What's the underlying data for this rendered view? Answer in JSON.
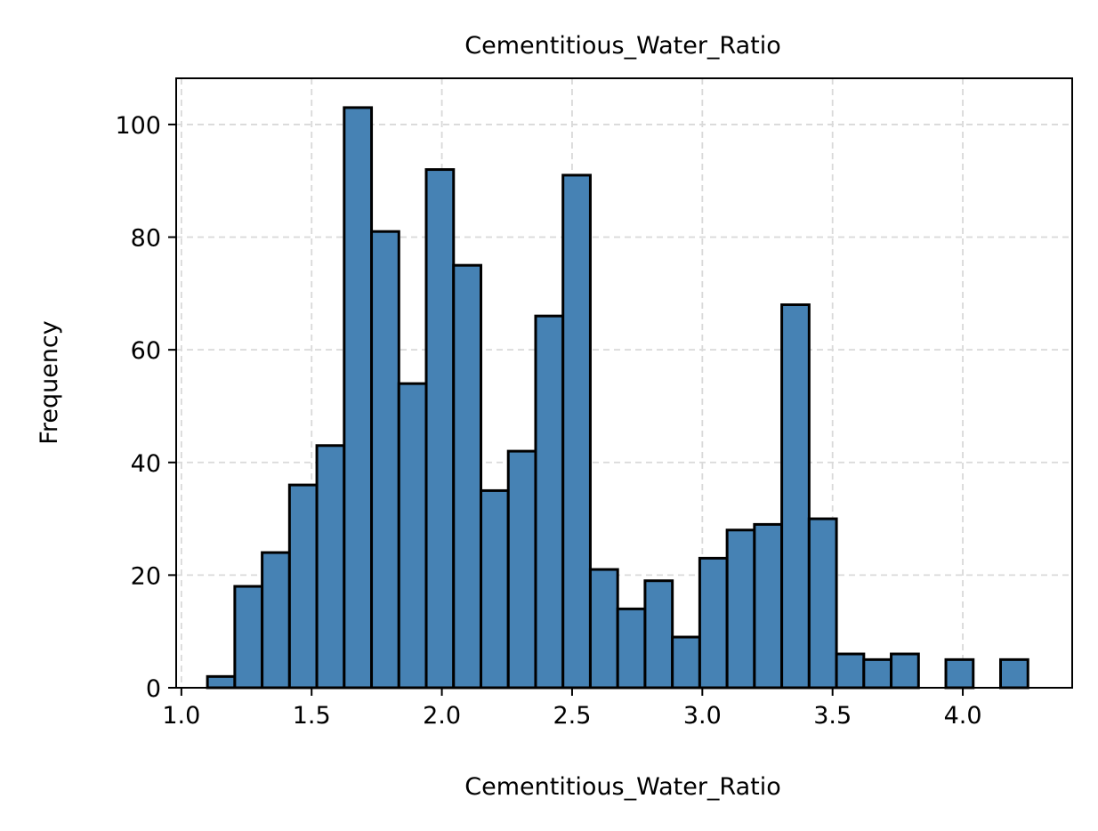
{
  "chart_data": {
    "type": "bar",
    "title": "Cementitious_Water_Ratio",
    "xlabel": "Cementitious_Water_Ratio",
    "ylabel": "Frequency",
    "xlim": [
      0.98,
      4.42
    ],
    "ylim": [
      0,
      108.2
    ],
    "xticks": [
      "1.0",
      "1.5",
      "2.0",
      "2.5",
      "3.0",
      "3.5",
      "4.0"
    ],
    "yticks": [
      "0",
      "20",
      "40",
      "60",
      "80",
      "100"
    ],
    "grid": true,
    "bin_width": 0.105,
    "bin_start": 1.1,
    "values": [
      2,
      18,
      24,
      36,
      43,
      103,
      81,
      54,
      92,
      75,
      35,
      42,
      66,
      91,
      21,
      14,
      19,
      9,
      23,
      28,
      29,
      68,
      30,
      6,
      5,
      6,
      0,
      5,
      0,
      5
    ],
    "colors": {
      "bar_fill": "#4682b4",
      "bar_edge": "#000000",
      "grid": "#d9d9d9"
    }
  }
}
